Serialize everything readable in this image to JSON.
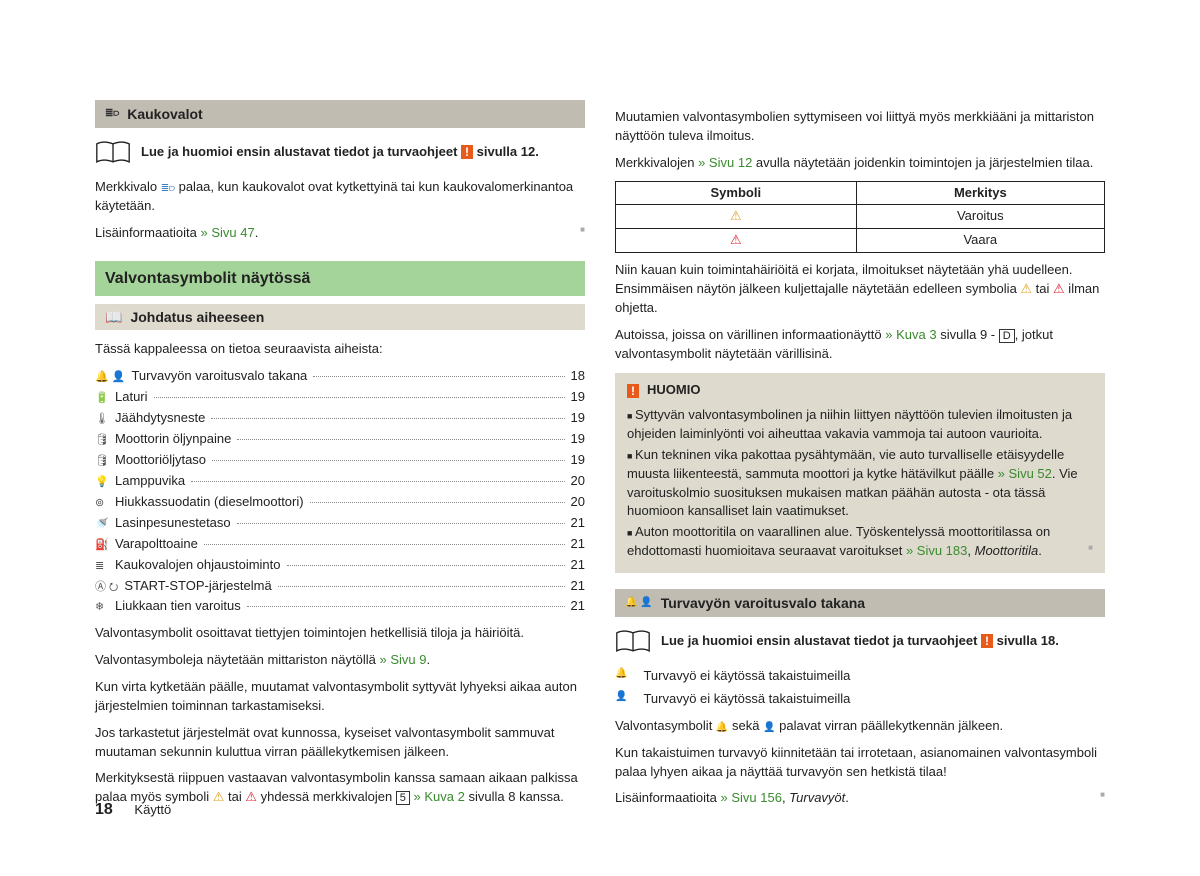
{
  "colors": {
    "bar_gray": "#c0bcb2",
    "bar_light": "#dedace",
    "bar_green": "#a4d49a",
    "link_green": "#3a8a2f",
    "warn_orange": "#e85a1a",
    "text": "#222222"
  },
  "left": {
    "sec1_title": "Kaukovalot",
    "read_first_1": "Lue ja huomioi ensin alustavat tiedot ja turvaohjeet",
    "read_first_1_tail": " sivulla 12.",
    "p1a": "Merkkivalo ",
    "p1b": " palaa, kun kaukovalot ovat kytkettyinä tai kun kaukovalomerkinantoa käytetään.",
    "p2a": "Lisäinformaatioita ",
    "p2_link": "» Sivu 47",
    "p2b": ".",
    "sec_green": "Valvontasymbolit näytössä",
    "sub_title": "Johdatus aiheeseen",
    "intro": "Tässä kappaleessa on tietoa seuraavista aiheista:",
    "toc": [
      {
        "icon": "🔔 👤",
        "label": "Turvavyön varoitusvalo takana",
        "page": "18"
      },
      {
        "icon": "🔋",
        "label": "Laturi",
        "page": "19"
      },
      {
        "icon": "🌡",
        "label": "Jäähdytysneste",
        "page": "19"
      },
      {
        "icon": "🛢",
        "label": "Moottorin öljynpaine",
        "page": "19"
      },
      {
        "icon": "🛢",
        "label": "Moottoriöljytaso",
        "page": "19"
      },
      {
        "icon": "💡",
        "label": "Lamppuvika",
        "page": "20"
      },
      {
        "icon": "⊚",
        "label": "Hiukkassuodatin (dieselmoottori)",
        "page": "20"
      },
      {
        "icon": "🚿",
        "label": "Lasinpesunestetaso",
        "page": "21"
      },
      {
        "icon": "⛽",
        "label": "Varapolttoaine",
        "page": "21"
      },
      {
        "icon": "≣",
        "label": "Kaukovalojen ohjaustoiminto",
        "page": "21"
      },
      {
        "icon": "Ⓐ ⭮",
        "label": "START-STOP-järjestelmä",
        "page": "21"
      },
      {
        "icon": "❄",
        "label": "Liukkaan tien varoitus",
        "page": "21"
      }
    ],
    "after1": "Valvontasymbolit osoittavat tiettyjen toimintojen hetkellisiä tiloja ja häiriöitä.",
    "after2a": "Valvontasymboleja näytetään mittariston näytöllä ",
    "after2_link": "» Sivu 9",
    "after2b": ".",
    "after3": "Kun virta kytketään päälle, muutamat valvontasymbolit syttyvät lyhyeksi aikaa auton järjestelmien toiminnan tarkastamiseksi.",
    "after4": "Jos tarkastetut järjestelmät ovat kunnossa, kyseiset valvontasymbolit sammuvat muutaman sekunnin kuluttua virran päällekytkemisen jälkeen.",
    "after5a": "Merkityksestä riippuen vastaavan valvontasymbolin kanssa samaan aikaan palkissa palaa myös symboli ",
    "after5b": " tai ",
    "after5c": " yhdessä merkkivalojen ",
    "after5_link": "» Kuva 2",
    "after5d": " sivulla 8 kanssa.",
    "badge5": "5"
  },
  "right": {
    "p1": "Muutamien valvontasymbolien syttymiseen voi liittyä myös merkkiääni ja mittariston näyttöön tuleva ilmoitus.",
    "p2a": "Merkkivalojen ",
    "p2_link": "» Sivu 12",
    "p2b": " avulla näytetään joidenkin toimintojen ja järjestelmien tilaa.",
    "table": {
      "h1": "Symboli",
      "h2": "Merkitys",
      "rows": [
        {
          "sym": "⚠",
          "sym_class": "tri-yellow",
          "mean": "Varoitus"
        },
        {
          "sym": "⚠",
          "sym_class": "tri-red",
          "mean": "Vaara"
        }
      ]
    },
    "p3a": "Niin kauan kuin toimintahäiriöitä ei korjata, ilmoitukset näytetään yhä uudelleen. Ensimmäisen näytön jälkeen kuljettajalle näytetään edelleen symbolia ",
    "p3b": " tai ",
    "p3c": " ilman ohjetta.",
    "p4a": "Autoissa, joissa on värillinen informaationäyttö ",
    "p4_link": "» Kuva 3",
    "p4b": " sivulla 9 - ",
    "p4_badge": "D",
    "p4c": ", jotkut valvontasymbolit näytetään värillisinä.",
    "notice_title": "HUOMIO",
    "notice_li1": "Syttyvän valvontasymbolinen ja niihin liittyen näyttöön tulevien ilmoitusten ja ohjeiden laiminlyönti voi aiheuttaa vakavia vammoja tai autoon vaurioita.",
    "notice_li2a": "Kun tekninen vika pakottaa pysähtymään, vie auto turvalliselle etäisyydelle muusta liikenteestä, sammuta moottori ja kytke hätävilkut päälle ",
    "notice_li2_link": "» Sivu 52",
    "notice_li2b": ". Vie varoituskolmio suosituksen mukaisen matkan päähän autosta - ota tässä huomioon kansalliset lain vaatimukset.",
    "notice_li3a": "Auton moottoritila on vaarallinen alue. Työskentelyssä moottoritilassa on ehdottomasti huomioitava seuraavat varoitukset ",
    "notice_li3_link": "» Sivu 183",
    "notice_li3b": ", ",
    "notice_li3_it": "Moottoritila",
    "notice_li3c": ".",
    "sec2_title": "Turvavyön varoitusvalo takana",
    "read_first_2": "Lue ja huomioi ensin alustavat tiedot ja turvaohjeet",
    "read_first_2_tail": " sivulla 18.",
    "belt1": "Turvavyö ei käytössä takaistuimeilla",
    "belt2": "Turvavyö ei käytössä takaistuimeilla",
    "p5a": "Valvontasymbolit ",
    "p5b": " sekä ",
    "p5c": " palavat virran päällekytkennän jälkeen.",
    "p6": "Kun takaistuimen turvavyö kiinnitetään tai irrotetaan, asianomainen valvontasymboli palaa lyhyen aikaa ja näyttää turvavyön sen hetkistä tilaa!",
    "p7a": "Lisäinformaatioita ",
    "p7_link": "» Sivu 156",
    "p7b": ", ",
    "p7_it": "Turvavyöt",
    "p7c": "."
  },
  "footer": {
    "page": "18",
    "label": "Käyttö"
  }
}
